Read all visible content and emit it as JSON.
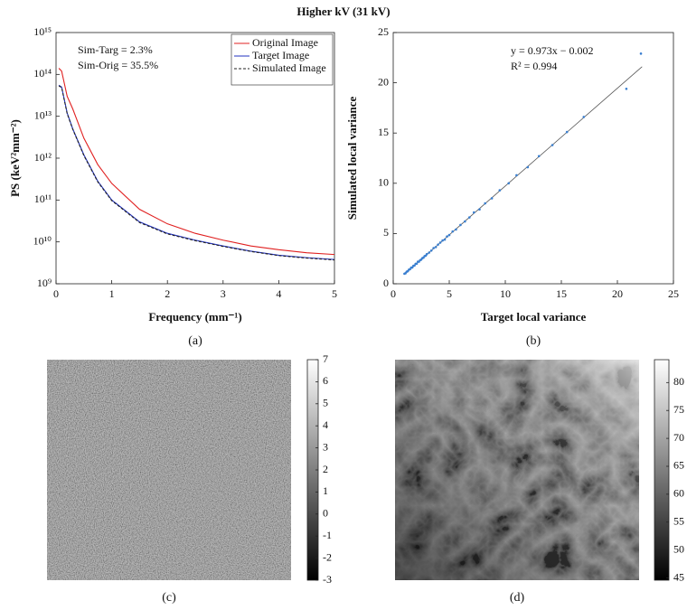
{
  "title": "Higher kV (31 kV)",
  "chart_data": [
    {
      "type": "line",
      "caption": "(a)",
      "xlabel": "Frequency (mm⁻¹)",
      "ylabel": "PS (keV²mm⁻²)",
      "log_y": true,
      "xlim": [
        0,
        5
      ],
      "ylim": [
        1000000000.0,
        1000000000000000.0
      ],
      "xticks": [
        0,
        1,
        2,
        3,
        4,
        5
      ],
      "yticks": [
        {
          "value": 1000000000.0,
          "label": "10⁹"
        },
        {
          "value": 10000000000.0,
          "label": "10¹⁰"
        },
        {
          "value": 100000000000.0,
          "label": "10¹¹"
        },
        {
          "value": 1000000000000.0,
          "label": "10¹²"
        },
        {
          "value": 10000000000000.0,
          "label": "10¹³"
        },
        {
          "value": 100000000000000.0,
          "label": "10¹⁴"
        },
        {
          "value": 1000000000000000.0,
          "label": "10¹⁵"
        }
      ],
      "annotations": [
        "Sim-Targ = 2.3%",
        "Sim-Orig = 35.5%"
      ],
      "legend": "upper right",
      "x": [
        0.05,
        0.1,
        0.2,
        0.3,
        0.5,
        0.75,
        1,
        1.5,
        2,
        2.5,
        3,
        3.5,
        4,
        4.5,
        5
      ],
      "series": [
        {
          "name": "Original Image",
          "color": "#e02020",
          "line_style": "solid",
          "values": [
            140000000000000.0,
            120000000000000.0,
            30000000000000.0,
            15000000000000.0,
            3000000000000.0,
            700000000000.0,
            250000000000.0,
            60000000000.0,
            27000000000.0,
            16000000000.0,
            11000000000.0,
            8000000000.0,
            6500000000.0,
            5500000000.0,
            5000000000.0
          ]
        },
        {
          "name": "Target Image",
          "color": "#2030c0",
          "line_style": "solid",
          "values": [
            55000000000000.0,
            50000000000000.0,
            12000000000000.0,
            5000000000000.0,
            1200000000000.0,
            280000000000.0,
            100000000000.0,
            30000000000.0,
            16000000000.0,
            11000000000.0,
            8000000000.0,
            6000000000.0,
            4800000000.0,
            4200000000.0,
            3800000000.0
          ]
        },
        {
          "name": "Simulated Image",
          "color": "#202020",
          "line_style": "dashed",
          "values": [
            53000000000000.0,
            49000000000000.0,
            11500000000000.0,
            4900000000000.0,
            1150000000000.0,
            270000000000.0,
            97000000000.0,
            29000000000.0,
            15500000000.0,
            10700000000.0,
            7800000000.0,
            5900000000.0,
            4700000000.0,
            4100000000.0,
            3700000000.0
          ]
        }
      ]
    },
    {
      "type": "scatter",
      "caption": "(b)",
      "xlabel": "Target local variance",
      "ylabel": "Simulated local variance",
      "xlim": [
        0,
        25
      ],
      "ylim": [
        0,
        25
      ],
      "xticks": [
        0,
        5,
        10,
        15,
        20,
        25
      ],
      "yticks": [
        0,
        5,
        10,
        15,
        20,
        25
      ],
      "annotations": [
        "y = 0.973x − 0.002",
        "R² = 0.994"
      ],
      "color": "#3a7fd0",
      "x": [
        1.0,
        1.1,
        1.2,
        1.3,
        1.4,
        1.5,
        1.6,
        1.7,
        1.8,
        1.9,
        2.0,
        2.1,
        2.2,
        2.3,
        2.4,
        2.5,
        2.6,
        2.7,
        2.8,
        2.9,
        3.0,
        3.2,
        3.4,
        3.6,
        3.8,
        4.0,
        4.2,
        4.4,
        4.6,
        4.8,
        5.0,
        5.3,
        5.6,
        6.0,
        6.4,
        6.8,
        7.2,
        7.7,
        8.2,
        8.8,
        9.5,
        10.3,
        11.0,
        12.0,
        13.0,
        14.2,
        15.5,
        17.0,
        20.8,
        22.1
      ],
      "values": [
        1.0,
        1.05,
        1.2,
        1.25,
        1.4,
        1.45,
        1.6,
        1.62,
        1.78,
        1.82,
        1.98,
        2.0,
        2.2,
        2.2,
        2.35,
        2.4,
        2.55,
        2.6,
        2.75,
        2.8,
        2.95,
        3.1,
        3.3,
        3.55,
        3.65,
        3.9,
        4.1,
        4.3,
        4.4,
        4.7,
        4.85,
        5.2,
        5.4,
        5.85,
        6.2,
        6.6,
        7.1,
        7.4,
        8.0,
        8.5,
        9.3,
        10.0,
        10.8,
        11.6,
        12.7,
        13.8,
        15.1,
        16.6,
        19.4,
        22.9
      ],
      "fit": {
        "x": [
          1,
          22.2
        ],
        "values": [
          0.971,
          21.6
        ],
        "color": "#555555"
      }
    },
    {
      "type": "image",
      "caption": "(c)",
      "ylim": [
        -3,
        7
      ],
      "yticks": [
        -3,
        -2,
        -1,
        0,
        1,
        2,
        3,
        4,
        5,
        6,
        7
      ]
    },
    {
      "type": "image",
      "caption": "(d)",
      "ylim": [
        44.6,
        84.1
      ],
      "yticks": [
        45,
        50,
        55,
        60,
        65,
        70,
        75,
        80
      ]
    }
  ]
}
